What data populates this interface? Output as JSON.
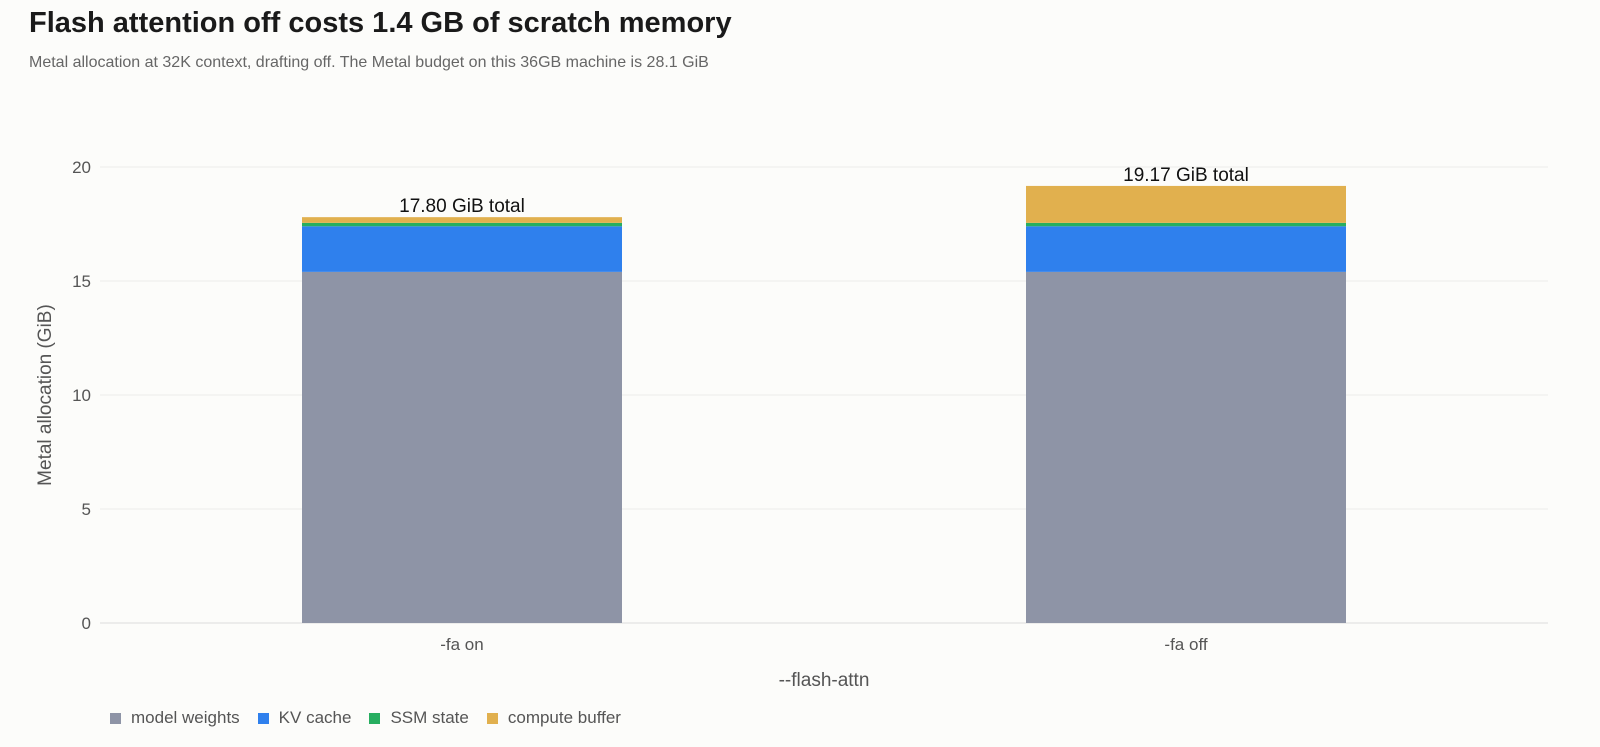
{
  "header": {
    "title": "Flash attention off costs 1.4 GB of scratch memory",
    "subtitle": "Metal allocation at 32K context, drafting off. The Metal budget on this 36GB machine is 28.1 GiB"
  },
  "chart_data": {
    "type": "bar",
    "stacked": true,
    "categories": [
      "-fa on",
      "-fa off"
    ],
    "series": [
      {
        "name": "model weights",
        "color": "#8e94a6",
        "values": [
          15.4,
          15.4
        ]
      },
      {
        "name": "KV cache",
        "color": "#2f80ed",
        "values": [
          2.0,
          2.0
        ]
      },
      {
        "name": "SSM state",
        "color": "#27ae60",
        "values": [
          0.15,
          0.15
        ]
      },
      {
        "name": "compute buffer",
        "color": "#e1b04e",
        "values": [
          0.25,
          1.62
        ]
      }
    ],
    "total_labels": [
      "17.80 GiB total",
      "19.17 GiB total"
    ],
    "xlabel": "--flash-attn",
    "ylabel": "Metal allocation (GiB)",
    "ylim": [
      0,
      20
    ],
    "yticks": [
      0,
      5,
      10,
      15,
      20
    ],
    "grid": true,
    "legend_position": "bottom-left"
  }
}
